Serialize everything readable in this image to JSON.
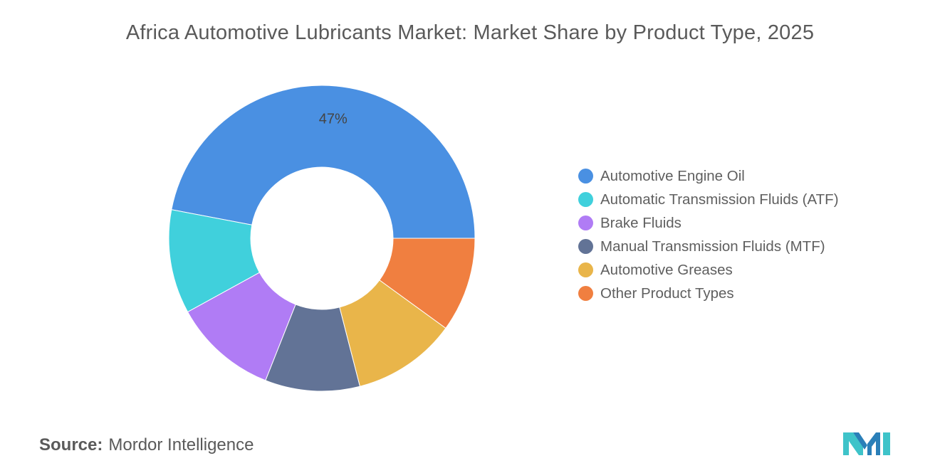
{
  "title": "Africa Automotive Lubricants Market: Market Share by Product Type, 2025",
  "source_label": "Source:",
  "source_text": "Mordor Intelligence",
  "chart_data": {
    "type": "pie",
    "donut": true,
    "title": "Africa Automotive Lubricants Market: Market Share by Product Type, 2025",
    "unit": "%",
    "categories": [
      "Automotive Engine Oil",
      "Automatic Transmission Fluids (ATF)",
      "Brake Fluids",
      "Manual Transmission Fluids (MTF)",
      "Automotive Greases",
      "Other Product Types"
    ],
    "values": [
      47,
      11,
      11,
      10,
      11,
      10
    ],
    "colors": [
      "#4a90e2",
      "#40d0dc",
      "#b07cf5",
      "#627396",
      "#e9b54a",
      "#f07f40"
    ],
    "data_labels": [
      {
        "category": "Automotive Engine Oil",
        "text": "47%"
      }
    ],
    "legend_position": "right"
  }
}
